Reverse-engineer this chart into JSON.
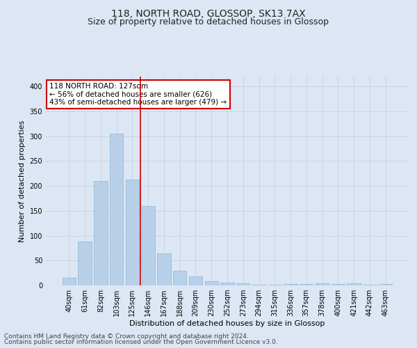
{
  "title": "118, NORTH ROAD, GLOSSOP, SK13 7AX",
  "subtitle": "Size of property relative to detached houses in Glossop",
  "xlabel": "Distribution of detached houses by size in Glossop",
  "ylabel": "Number of detached properties",
  "categories": [
    "40sqm",
    "61sqm",
    "82sqm",
    "103sqm",
    "125sqm",
    "146sqm",
    "167sqm",
    "188sqm",
    "209sqm",
    "230sqm",
    "252sqm",
    "273sqm",
    "294sqm",
    "315sqm",
    "336sqm",
    "357sqm",
    "378sqm",
    "400sqm",
    "421sqm",
    "442sqm",
    "463sqm"
  ],
  "values": [
    15,
    88,
    210,
    305,
    213,
    160,
    65,
    30,
    18,
    9,
    5,
    4,
    2,
    2,
    3,
    3,
    4,
    3,
    4,
    1,
    3
  ],
  "bar_color": "#b8d0e8",
  "bar_edge_color": "#90b8d8",
  "grid_color": "#c8d4e4",
  "background_color": "#dce6f4",
  "vline_x": 4.5,
  "vline_color": "#cc0000",
  "annotation_text": "118 NORTH ROAD: 127sqm\n← 56% of detached houses are smaller (626)\n43% of semi-detached houses are larger (479) →",
  "annotation_box_color": "#ffffff",
  "annotation_box_edge": "#cc0000",
  "footer_line1": "Contains HM Land Registry data © Crown copyright and database right 2024.",
  "footer_line2": "Contains public sector information licensed under the Open Government Licence v3.0.",
  "ylim": [
    0,
    420
  ],
  "yticks": [
    0,
    50,
    100,
    150,
    200,
    250,
    300,
    350,
    400
  ],
  "title_fontsize": 10,
  "subtitle_fontsize": 9,
  "axis_label_fontsize": 8,
  "tick_fontsize": 7,
  "annotation_fontsize": 7.5,
  "footer_fontsize": 6.5
}
